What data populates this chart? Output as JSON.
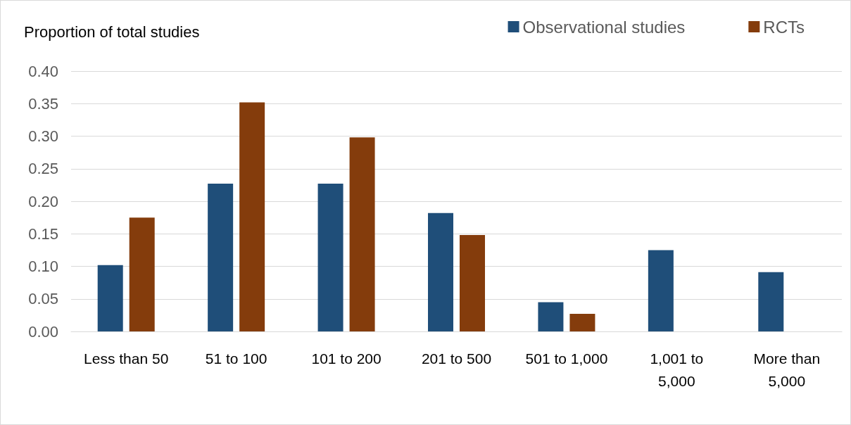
{
  "chart_data": {
    "type": "bar",
    "ylabel": "Proportion of total studies",
    "categories": [
      "Less than 50",
      "51 to 100",
      "101 to 200",
      "201 to 500",
      "501 to 1,000",
      "1,001 to 5,000",
      "More than 5,000"
    ],
    "series": [
      {
        "name": "Observational studies",
        "color": "#1f4e79",
        "values": [
          0.102,
          0.227,
          0.227,
          0.182,
          0.045,
          0.125,
          0.091
        ]
      },
      {
        "name": "RCTs",
        "color": "#843c0c",
        "values": [
          0.175,
          0.352,
          0.298,
          0.148,
          0.027,
          0,
          0
        ]
      }
    ],
    "ylim": [
      0,
      0.4
    ],
    "yticks": [
      {
        "value": 0,
        "label": "0.00"
      },
      {
        "value": 0.05,
        "label": "0.05"
      },
      {
        "value": 0.1,
        "label": "0.10"
      },
      {
        "value": 0.15,
        "label": "0.15"
      },
      {
        "value": 0.2,
        "label": "0.20"
      },
      {
        "value": 0.25,
        "label": "0.25"
      },
      {
        "value": 0.3,
        "label": "0.30"
      },
      {
        "value": 0.35,
        "label": "0.35"
      },
      {
        "value": 0.4,
        "label": "0.40"
      }
    ],
    "grid": "y",
    "legend": "top right"
  }
}
